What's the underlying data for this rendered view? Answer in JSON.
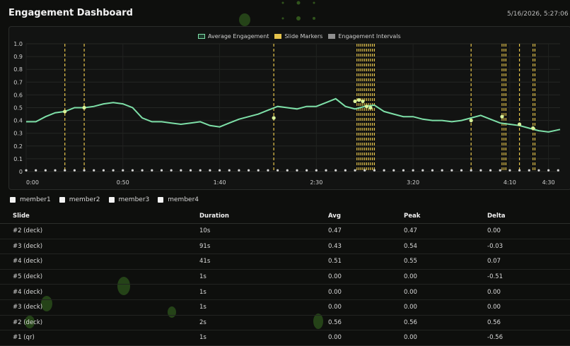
{
  "header": {
    "title": "Engagement Dashboard",
    "timestamp": "5/16/2026, 5:27:06 PM"
  },
  "legend": {
    "items": [
      {
        "label": "Average Engagement",
        "color": "#7ee0a8"
      },
      {
        "label": "Slide Markers",
        "color": "#e6c44c"
      },
      {
        "label": "Engagement Intervals",
        "color": "#8f8f8f"
      }
    ]
  },
  "chart_data": {
    "type": "line",
    "title": "",
    "xlabel": "",
    "ylabel": "",
    "x_range_seconds": [
      0,
      276
    ],
    "ylim": [
      0,
      1.0
    ],
    "x_tick_labels": [
      "0:00",
      "0:50",
      "1:40",
      "2:30",
      "3:20",
      "4:10",
      "4:30"
    ],
    "x_tick_seconds": [
      0,
      50,
      100,
      150,
      200,
      250,
      270
    ],
    "y_tick_labels": [
      "1.0",
      "0.9",
      "0.8",
      "0.7",
      "0.6",
      "0.5",
      "0.4",
      "0.3",
      "0.2",
      "0.1",
      "0"
    ],
    "grid": true,
    "legend_position": "top-center",
    "series": [
      {
        "name": "Average Engagement",
        "color": "#7ee0a8",
        "x": [
          0,
          5,
          10,
          15,
          20,
          25,
          30,
          35,
          40,
          45,
          50,
          55,
          60,
          65,
          70,
          75,
          80,
          85,
          90,
          95,
          100,
          105,
          110,
          115,
          120,
          125,
          130,
          135,
          140,
          145,
          150,
          155,
          160,
          165,
          170,
          175,
          180,
          185,
          190,
          195,
          200,
          205,
          210,
          215,
          220,
          225,
          230,
          235,
          240,
          245,
          250,
          255,
          260,
          265,
          270,
          276
        ],
        "y": [
          0.39,
          0.39,
          0.43,
          0.46,
          0.47,
          0.5,
          0.5,
          0.51,
          0.53,
          0.54,
          0.53,
          0.5,
          0.42,
          0.39,
          0.39,
          0.38,
          0.37,
          0.38,
          0.39,
          0.36,
          0.35,
          0.38,
          0.41,
          0.43,
          0.45,
          0.48,
          0.51,
          0.5,
          0.49,
          0.51,
          0.51,
          0.54,
          0.57,
          0.51,
          0.49,
          0.51,
          0.52,
          0.47,
          0.45,
          0.43,
          0.43,
          0.41,
          0.4,
          0.4,
          0.39,
          0.4,
          0.42,
          0.44,
          0.41,
          0.38,
          0.37,
          0.36,
          0.34,
          0.32,
          0.31,
          0.33
        ]
      }
    ],
    "slide_marker_seconds": [
      20,
      30,
      128,
      171,
      172,
      173,
      174,
      175,
      176,
      177,
      178,
      179,
      180,
      230,
      246,
      247,
      248,
      255,
      262,
      263
    ],
    "slide_marker_points": [
      {
        "x": 20,
        "y": 0.47
      },
      {
        "x": 30,
        "y": 0.5
      },
      {
        "x": 128,
        "y": 0.42
      },
      {
        "x": 170,
        "y": 0.55
      },
      {
        "x": 172,
        "y": 0.56
      },
      {
        "x": 174,
        "y": 0.55
      },
      {
        "x": 176,
        "y": 0.51
      },
      {
        "x": 178,
        "y": 0.5
      },
      {
        "x": 230,
        "y": 0.4
      },
      {
        "x": 246,
        "y": 0.43
      },
      {
        "x": 255,
        "y": 0.37
      },
      {
        "x": 262,
        "y": 0.34
      }
    ],
    "interval_marks": {
      "y": 0.01,
      "start": 0,
      "end": 276,
      "step": 5
    }
  },
  "members": [
    {
      "label": "member1",
      "checked": false
    },
    {
      "label": "member2",
      "checked": false
    },
    {
      "label": "member3",
      "checked": false
    },
    {
      "label": "member4",
      "checked": false
    }
  ],
  "table": {
    "columns": [
      "Slide",
      "Duration",
      "Avg",
      "Peak",
      "Delta"
    ],
    "rows": [
      [
        "#2 (deck)",
        "10s",
        "0.47",
        "0.47",
        "0.00"
      ],
      [
        "#3 (deck)",
        "91s",
        "0.43",
        "0.54",
        "-0.03"
      ],
      [
        "#4 (deck)",
        "41s",
        "0.51",
        "0.55",
        "0.07"
      ],
      [
        "#5 (deck)",
        "1s",
        "0.00",
        "0.00",
        "-0.51"
      ],
      [
        "#4 (deck)",
        "1s",
        "0.00",
        "0.00",
        "0.00"
      ],
      [
        "#3 (deck)",
        "1s",
        "0.00",
        "0.00",
        "0.00"
      ],
      [
        "#2 (deck)",
        "2s",
        "0.56",
        "0.56",
        "0.56"
      ],
      [
        "#1 (qr)",
        "1s",
        "0.00",
        "0.00",
        "-0.56"
      ]
    ]
  }
}
